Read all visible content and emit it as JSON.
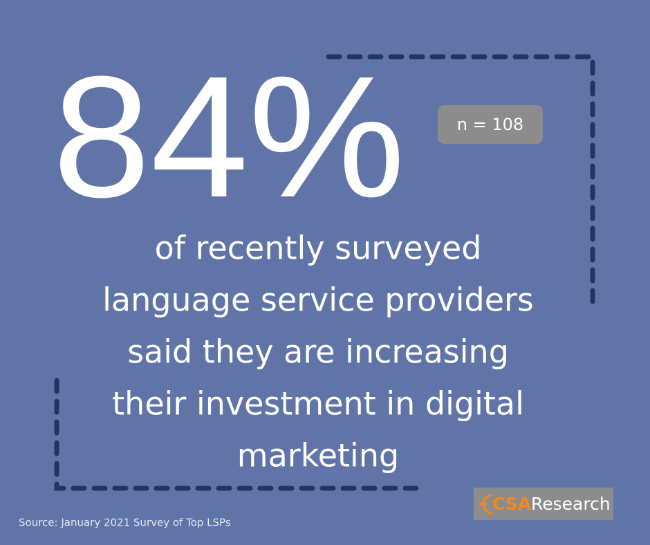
{
  "stat": "84%",
  "sample_size": "n = 108",
  "description_lines": [
    "of recently surveyed",
    "language service providers",
    "said they are increasing",
    "their investment in digital",
    "marketing"
  ],
  "source": "Source: January 2021 Survey of Top LSPs",
  "logo": {
    "brand": "CSA",
    "word": "Research"
  }
}
